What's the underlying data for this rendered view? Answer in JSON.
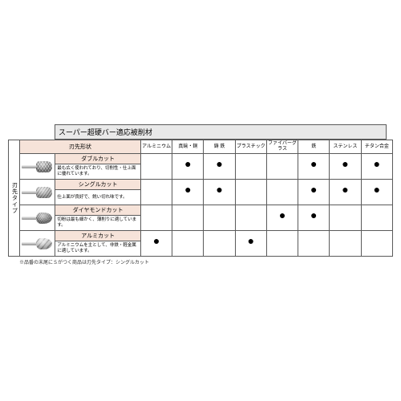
{
  "colors": {
    "border": "#5a5a5a",
    "title_bg": "#e9e9e9",
    "rowhdr_bg": "#f6e3d9",
    "page_bg": "#ffffff",
    "text": "#222222"
  },
  "title": "スーパー超硬バー適応被削材",
  "side_label": "刃先タイプ",
  "shape_header": "刃先形状",
  "materials": [
    "アルミニウム",
    "真鍮・銅",
    "鋳 鉄",
    "プラスチック",
    "ファイバーグラス",
    "鉄",
    "ステンレス",
    "チタン合金"
  ],
  "rows": [
    {
      "name": "ダブルカット",
      "desc": "最も広く使われており、切削性・仕上面に優れています。",
      "marks": [
        false,
        true,
        true,
        false,
        false,
        true,
        true,
        true
      ],
      "head_class": "hatch-d",
      "egg": false
    },
    {
      "name": "シングルカット",
      "desc": "仕上面が良好で、鋭い切れ味です。",
      "marks": [
        false,
        true,
        true,
        false,
        false,
        true,
        true,
        true
      ],
      "head_class": "hatch-s",
      "egg": false
    },
    {
      "name": "ダイヤモンドカット",
      "desc": "切粉は最も細かく、薄削りに適しています。",
      "marks": [
        false,
        false,
        false,
        false,
        true,
        true,
        false,
        false
      ],
      "head_class": "hatch-x",
      "egg": true
    },
    {
      "name": "アルミカット",
      "desc": "アルミニウムを主として、非鉄・軽金属に適しています。",
      "marks": [
        true,
        false,
        false,
        true,
        false,
        false,
        false,
        false
      ],
      "head_class": "hatch-a",
      "egg": true
    }
  ],
  "footnote": "※品番の末尾にＳがつく商品は刃先タイプ：シングルカット",
  "dot": "●"
}
